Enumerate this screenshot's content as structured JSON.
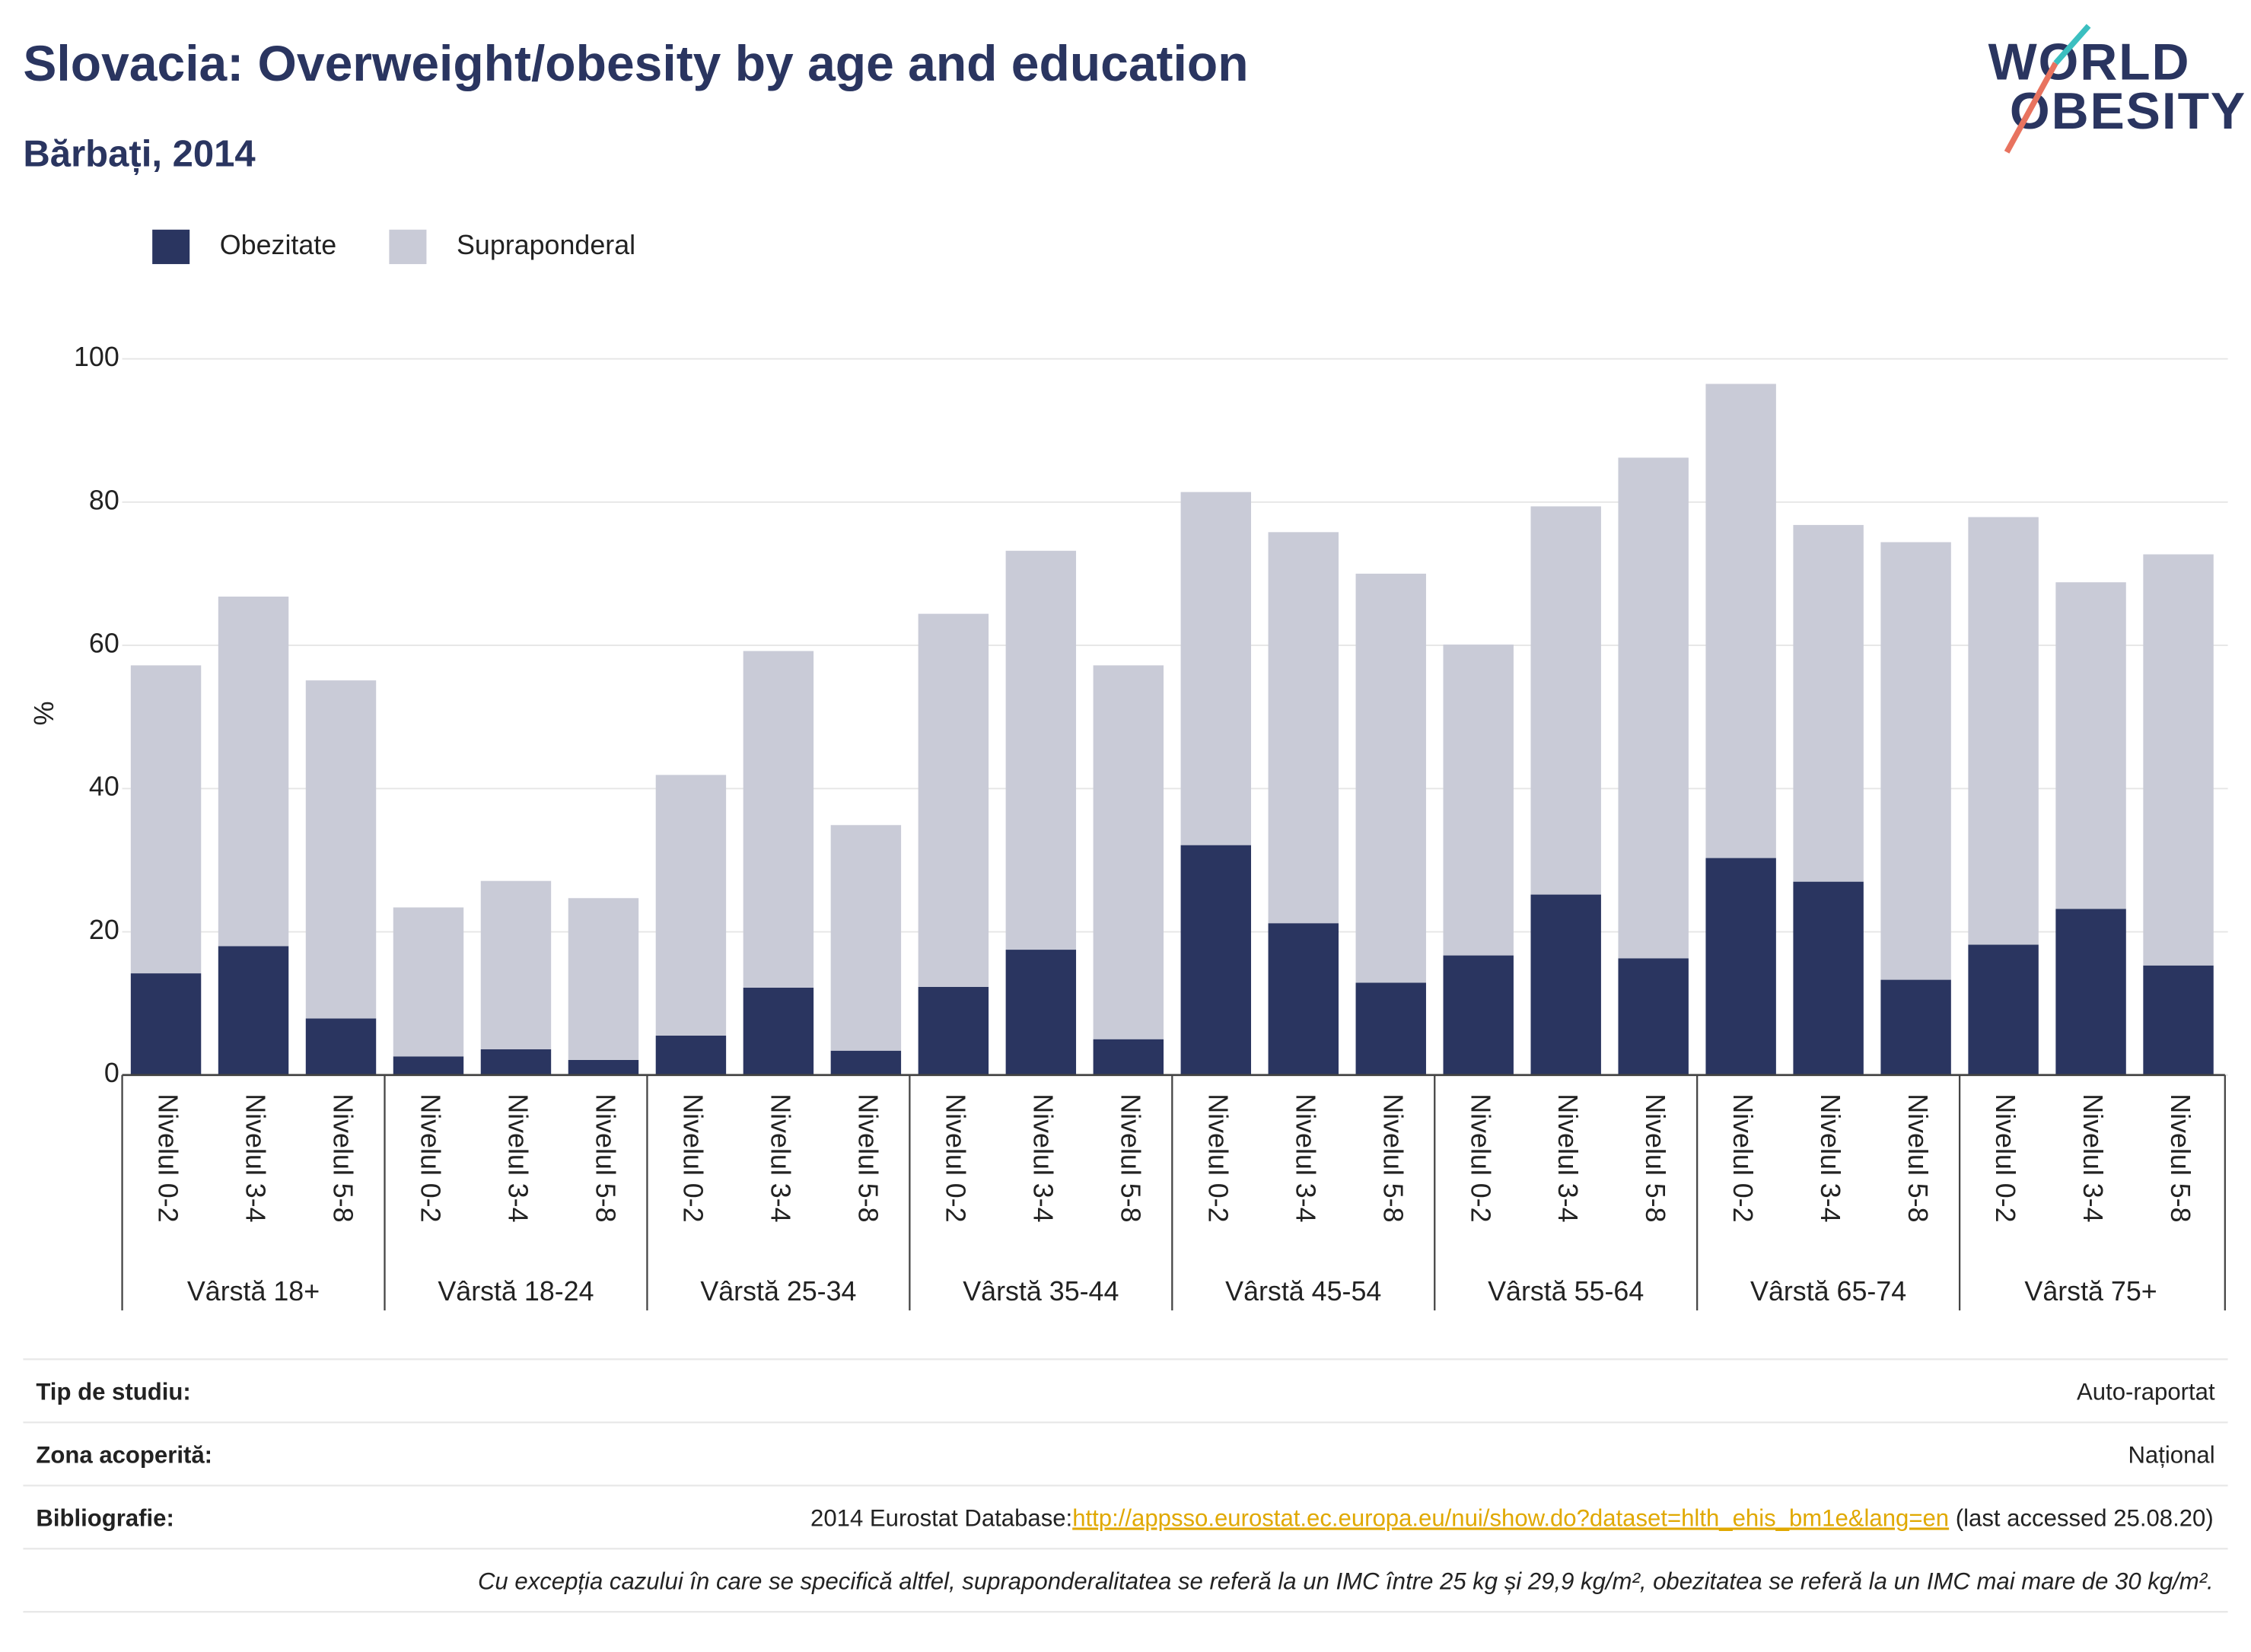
{
  "chart_data": {
    "type": "stacked_bar",
    "title": "Slovacia: Overweight/obesity by age and education",
    "subtitle": "Bărbați, 2014",
    "y_label": "%",
    "logo": [
      "WORLD",
      "OBESITY"
    ],
    "groups": [
      {
        "name": "Vârstă 18+",
        "categories": [
          "Nivelul 0-2",
          "Nivelul 3-4",
          "Nivelul 5-8"
        ]
      },
      {
        "name": "Vârstă 18-24",
        "categories": [
          "Nivelul 0-2",
          "Nivelul 3-4",
          "Nivelul 5-8"
        ]
      },
      {
        "name": "Vârstă 25-34",
        "categories": [
          "Nivelul 0-2",
          "Nivelul 3-4",
          "Nivelul 5-8"
        ]
      },
      {
        "name": "Vârstă 35-44",
        "categories": [
          "Nivelul 0-2",
          "Nivelul 3-4",
          "Nivelul 5-8"
        ]
      },
      {
        "name": "Vârstă 45-54",
        "categories": [
          "Nivelul 0-2",
          "Nivelul 3-4",
          "Nivelul 5-8"
        ]
      },
      {
        "name": "Vârstă 55-64",
        "categories": [
          "Nivelul 0-2",
          "Nivelul 3-4",
          "Nivelul 5-8"
        ]
      },
      {
        "name": "Vârstă 65-74",
        "categories": [
          "Nivelul 0-2",
          "Nivelul 3-4",
          "Nivelul 5-8"
        ]
      },
      {
        "name": "Vârstă 75+",
        "categories": [
          "Nivelul 0-2",
          "Nivelul 3-4",
          "Nivelul 5-8"
        ]
      }
    ],
    "series": [
      {
        "name": "Obezitate",
        "color": "#2a3560",
        "values": [
          14.2,
          18.0,
          7.9,
          2.6,
          3.6,
          2.1,
          5.5,
          12.2,
          3.4,
          12.3,
          17.5,
          5.0,
          32.1,
          21.2,
          12.9,
          16.7,
          25.2,
          16.3,
          30.3,
          27.0,
          13.3,
          18.2,
          23.2,
          15.3
        ]
      },
      {
        "name": "Supraponderal",
        "color": "#c9cbd7",
        "values": [
          43.0,
          48.8,
          47.2,
          20.8,
          23.5,
          22.6,
          36.4,
          47.0,
          31.5,
          52.1,
          55.7,
          52.2,
          49.3,
          54.6,
          57.1,
          43.4,
          54.2,
          69.9,
          66.2,
          49.8,
          61.1,
          59.7,
          45.6,
          57.4
        ]
      }
    ],
    "ylim": [
      0,
      100
    ],
    "yticks": [
      0,
      20,
      40,
      60,
      80,
      100
    ],
    "grid": true,
    "footer": {
      "rows": [
        {
          "label": "Tip de studiu:",
          "value": "Auto-raportat"
        },
        {
          "label": "Zona acoperită:",
          "value": "Național"
        }
      ],
      "bibliography": {
        "label": "Bibliografie:",
        "prefix": "2014 Eurostat Database:",
        "link": "http://appsso.eurostat.ec.europa.eu/nui/show.do?dataset=hlth_ehis_bm1e&lang=en",
        "suffix": " (last accessed 25.08.20)"
      },
      "note": "Cu excepția cazului în care se specifică altfel, supraponderalitatea se referă la un IMC între 25 kg și 29,9 kg/m², obezitatea se referă la un IMC mai mare de 30 kg/m²."
    }
  }
}
